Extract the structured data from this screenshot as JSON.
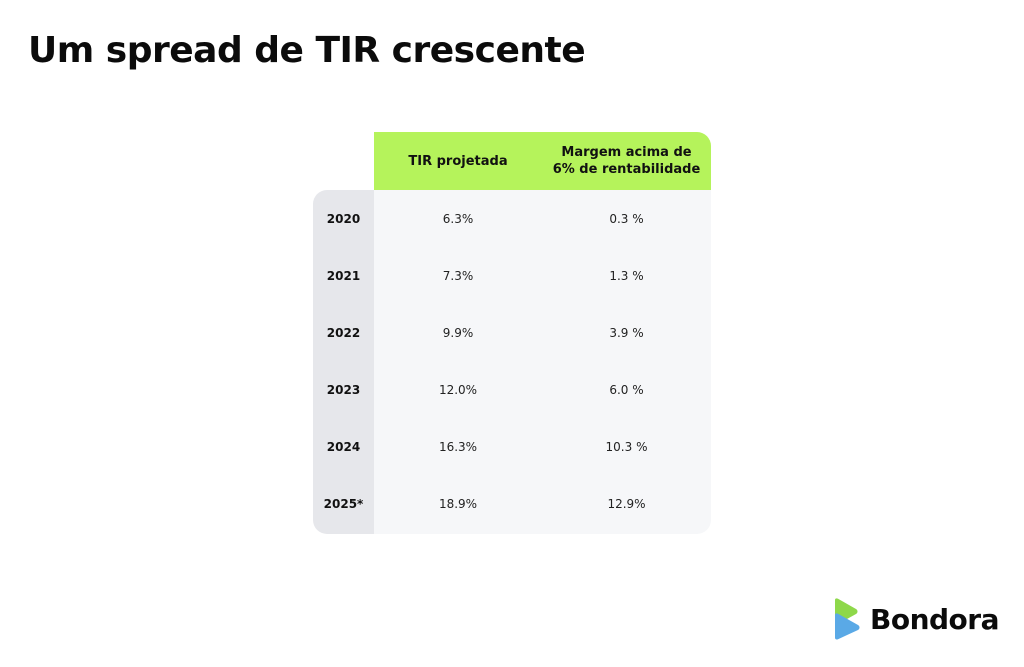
{
  "title": "Um spread de TIR crescente",
  "brand": {
    "name": "Bondora",
    "colors": {
      "green": "#8ed84a",
      "blue": "#5aa9e6",
      "header_green": "#b5f35b"
    }
  },
  "chart_data": {
    "type": "table",
    "title": "Um spread de TIR crescente",
    "columns": [
      "TIR projetada",
      "Margem acima de\n6% de rentabilidade"
    ],
    "rows": [
      {
        "year": "2020",
        "tir": "6.3%",
        "margem": "0.3 %"
      },
      {
        "year": "2021",
        "tir": "7.3%",
        "margem": "1.3 %"
      },
      {
        "year": "2022",
        "tir": "9.9%",
        "margem": "3.9 %"
      },
      {
        "year": "2023",
        "tir": "12.0%",
        "margem": "6.0 %"
      },
      {
        "year": "2024",
        "tir": "16.3%",
        "margem": "10.3 %"
      },
      {
        "year": "2025*",
        "tir": "18.9%",
        "margem": "12.9%"
      }
    ]
  }
}
